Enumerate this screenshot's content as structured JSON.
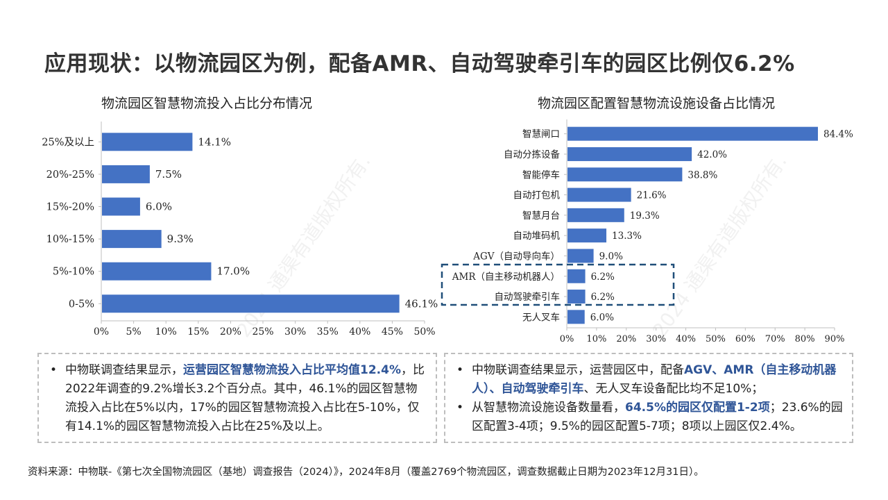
{
  "page": {
    "title": "应用现状：以物流园区为例，配备AMR、自动驾驶牵引车的园区比例仅6.2%",
    "source": "资料来源：中物联-《第七次全国物流园区（基地）调查报告（2024）》，2024年8月（覆盖2769个物流园区，调查数据截止日期为2023年12月31日）。",
    "watermark": "2024 通渠有道版权所有."
  },
  "chart_data": [
    {
      "type": "bar",
      "orientation": "horizontal",
      "title": "物流园区智慧物流投入占比分布情况",
      "categories": [
        "25%及以上",
        "20%-25%",
        "15%-20%",
        "10%-15%",
        "5%-10%",
        "0-5%"
      ],
      "values": [
        14.1,
        7.5,
        6.0,
        9.3,
        17.0,
        46.1
      ],
      "value_labels": [
        "14.1%",
        "7.5%",
        "6.0%",
        "9.3%",
        "17.0%",
        "46.1%"
      ],
      "xlim": [
        0,
        50
      ],
      "xticks": [
        "0%",
        "5%",
        "10%",
        "15%",
        "20%",
        "25%",
        "30%",
        "35%",
        "40%",
        "45%",
        "50%"
      ],
      "grid": false,
      "color": "#4472c4"
    },
    {
      "type": "bar",
      "orientation": "horizontal",
      "title": "物流园区配置智慧物流设施设备占比情况",
      "categories": [
        "智慧闸口",
        "自动分拣设备",
        "智能停车",
        "自动打包机",
        "智慧月台",
        "自动堆码机",
        "AGV（自动导向车）",
        "AMR（自主移动机器人）",
        "自动驾驶牵引车",
        "无人叉车"
      ],
      "values": [
        84.4,
        42.0,
        38.8,
        21.6,
        19.3,
        13.3,
        9.0,
        6.2,
        6.2,
        6.0
      ],
      "value_labels": [
        "84.4%",
        "42.0%",
        "38.8%",
        "21.6%",
        "19.3%",
        "13.3%",
        "9.0%",
        "6.2%",
        "6.2%",
        "6.0%"
      ],
      "xlim": [
        0,
        90
      ],
      "xticks": [
        "0%",
        "10%",
        "20%",
        "30%",
        "40%",
        "50%",
        "60%",
        "70%",
        "80%",
        "90%"
      ],
      "grid": false,
      "color": "#4472c4",
      "highlight_color": "#1f4e79"
    }
  ],
  "notes": {
    "left": {
      "p1_a": "中物联调查结果显示，",
      "p1_hl": "运营园区智慧物流投入占比平均值12.4%",
      "p1_b": "，比2022年调查的9.2%增长3.2个百分点。其中，46.1%的园区智慧物流投入占比在5%以内，17%的园区智慧物流投入占比在5-10%，仅有14.1%的园区智慧物流投入占比在25%及以上。"
    },
    "right": {
      "p1_a": "中物联调查结果显示，运营园区中，配备",
      "p1_hl": "AGV、AMR（自主移动机器人）、自动驾驶牵引车",
      "p1_b": "、无人叉车设备配比均不足10%；",
      "p2_a": "从智慧物流设施设备数量看，",
      "p2_hl": "64.5%的园区仅配置1-2项",
      "p2_b": "；23.6%的园区配置3-4项；9.5%的园区配置5-7项；8项以上园区仅2.4%。"
    }
  }
}
